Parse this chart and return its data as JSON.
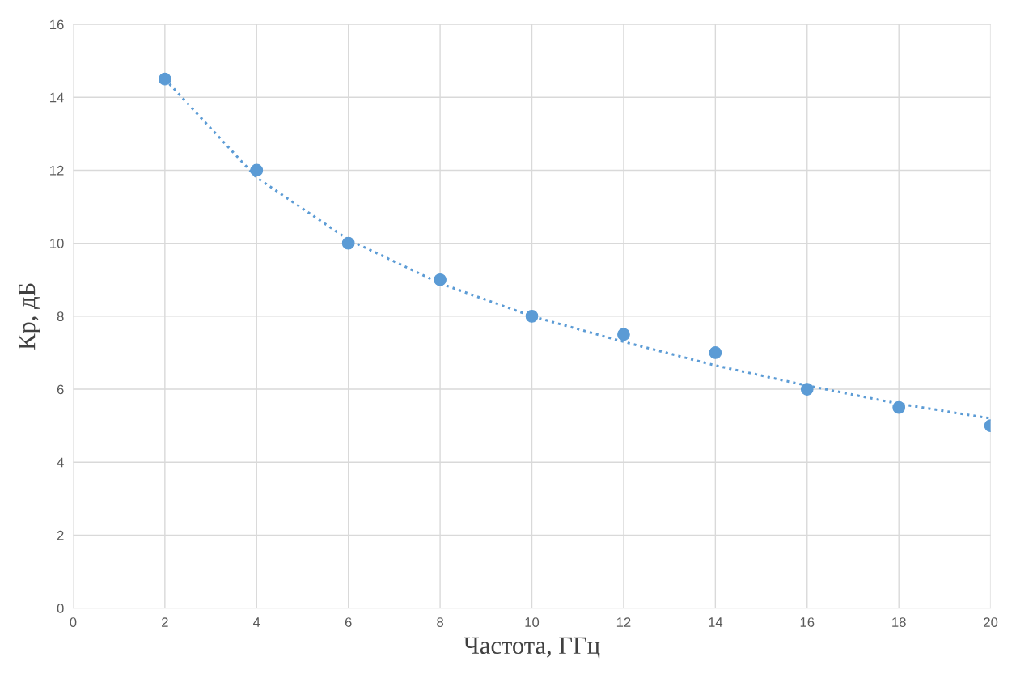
{
  "chart_data": {
    "type": "scatter",
    "xlabel": "Частота, ГГц",
    "ylabel": "Кр, дБ",
    "x": [
      2,
      4,
      6,
      8,
      10,
      12,
      14,
      16,
      18,
      20
    ],
    "series": [
      {
        "color": "#5b9bd5",
        "values": [
          14.5,
          12,
          10,
          9,
          8,
          7.5,
          7,
          6,
          5.5,
          5
        ],
        "marker": "circle"
      },
      {
        "type": "line",
        "color": "#5b9bd5",
        "x": [
          2,
          4,
          6,
          8,
          10,
          12,
          14,
          16,
          18,
          20
        ],
        "values": [
          14.5,
          11.8,
          10.1,
          8.9,
          8.0,
          7.3,
          6.65,
          6.1,
          5.6,
          5.2
        ],
        "line_style": "dotted",
        "marker": "none"
      }
    ],
    "xlim": [
      0,
      20
    ],
    "xticks": [
      0,
      2,
      4,
      6,
      8,
      10,
      12,
      14,
      16,
      18,
      20
    ],
    "ylim": [
      0,
      16
    ],
    "yticks": [
      0,
      2,
      4,
      6,
      8,
      10,
      12,
      14,
      16
    ],
    "grid": true,
    "legend": false
  }
}
